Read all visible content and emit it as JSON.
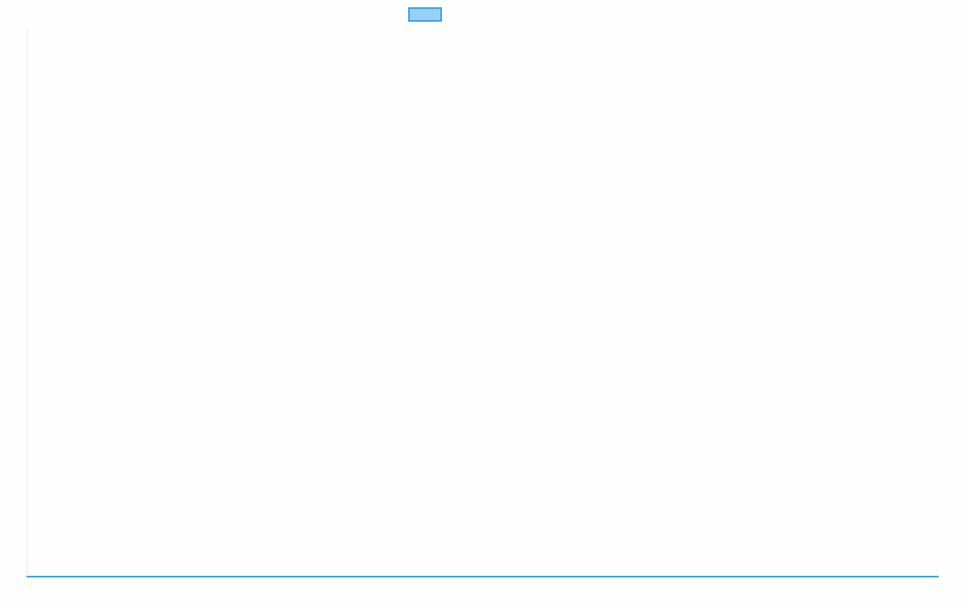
{
  "chart_data": {
    "type": "line",
    "title": "",
    "xlabel": "",
    "ylabel": "",
    "legend": {
      "placement": "top",
      "entries": [
        {
          "label": "",
          "color": "#36a2eb",
          "fill": "#9ad0f5"
        }
      ]
    },
    "grid": false,
    "ylim": [
      0,
      1
    ],
    "x": [
      0,
      1
    ],
    "series": [
      {
        "values": [
          0,
          0
        ],
        "color": "#36a2eb"
      }
    ]
  }
}
